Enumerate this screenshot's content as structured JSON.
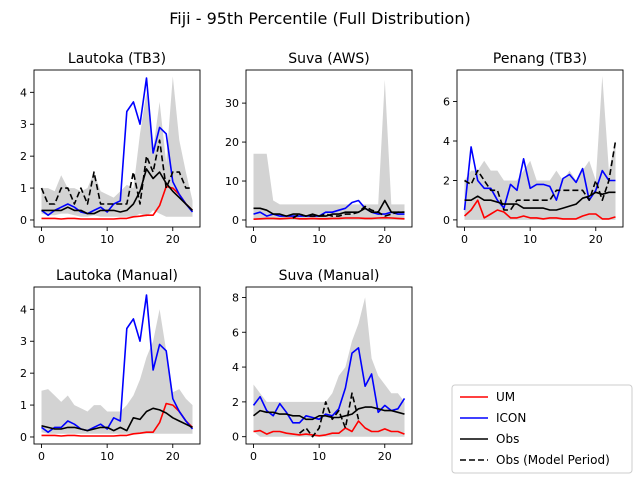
{
  "figure": {
    "title": "Fiji - 95th Percentile (Full Distribution)"
  },
  "colors": {
    "um": "#ff0000",
    "icon": "#0000ff",
    "obs": "#000000",
    "obs_model": "#000000",
    "band": "#d3d3d3"
  },
  "legend": {
    "placement": "lower-right",
    "entries": [
      {
        "label": "UM",
        "color": "#ff0000",
        "style": "solid"
      },
      {
        "label": "ICON",
        "color": "#0000ff",
        "style": "solid"
      },
      {
        "label": "Obs",
        "color": "#000000",
        "style": "solid"
      },
      {
        "label": "Obs (Model Period)",
        "color": "#000000",
        "style": "dashed"
      }
    ]
  },
  "chart_data": [
    {
      "type": "line",
      "title": "Lautoka (TB3)",
      "xlim": [
        -1.15,
        24.15
      ],
      "ylim": [
        -0.22,
        4.7
      ],
      "xticks": [
        0,
        10,
        20
      ],
      "yticks": [
        0,
        1,
        2,
        3,
        4
      ],
      "x": [
        0,
        1,
        2,
        3,
        4,
        5,
        6,
        7,
        8,
        9,
        10,
        11,
        12,
        13,
        14,
        15,
        16,
        17,
        18,
        19,
        20,
        21,
        22,
        23
      ],
      "band": {
        "upper": [
          1.0,
          1.0,
          0.9,
          1.4,
          1.0,
          1.0,
          0.9,
          1.0,
          1.5,
          0.9,
          0.8,
          0.7,
          0.9,
          1.1,
          1.0,
          2.7,
          4.0,
          2.2,
          3.7,
          1.8,
          4.5,
          2.5,
          1.5,
          0.6
        ],
        "lower": [
          0.2,
          0.15,
          0.15,
          0.2,
          0.2,
          0.15,
          0.1,
          0.1,
          0.15,
          0.1,
          0.1,
          0.1,
          0.1,
          0.1,
          0.1,
          0.2,
          0.1,
          0.3,
          0.2,
          0.1,
          0.1,
          0.1,
          0.1,
          0.1
        ]
      },
      "series": [
        {
          "name": "UM",
          "values": [
            0.05,
            0.05,
            0.05,
            0.03,
            0.05,
            0.05,
            0.03,
            0.03,
            0.03,
            0.03,
            0.03,
            0.03,
            0.05,
            0.05,
            0.1,
            0.12,
            0.15,
            0.15,
            0.45,
            1.05,
            1.0,
            0.8,
            0.5,
            0.3
          ]
        },
        {
          "name": "ICON",
          "values": [
            0.3,
            0.15,
            0.3,
            0.4,
            0.5,
            0.4,
            0.25,
            0.2,
            0.3,
            0.4,
            0.25,
            0.5,
            0.6,
            3.4,
            3.7,
            3.0,
            4.45,
            2.1,
            2.9,
            2.7,
            1.2,
            0.8,
            0.5,
            0.25
          ]
        },
        {
          "name": "Obs",
          "values": [
            0.3,
            0.3,
            0.3,
            0.3,
            0.4,
            0.3,
            0.3,
            0.2,
            0.2,
            0.3,
            0.3,
            0.3,
            0.25,
            0.3,
            0.5,
            0.9,
            1.6,
            1.3,
            1.5,
            1.15,
            0.9,
            0.7,
            0.5,
            0.3
          ]
        },
        {
          "name": "Obs (Model Period)",
          "values": [
            1.0,
            0.5,
            0.5,
            1.0,
            1.0,
            0.5,
            1.0,
            0.5,
            1.5,
            0.5,
            0.5,
            0.5,
            0.5,
            0.5,
            1.5,
            0.5,
            2.0,
            1.5,
            2.5,
            1.0,
            1.5,
            1.5,
            1.0,
            1.0
          ]
        }
      ]
    },
    {
      "type": "line",
      "title": "Suva (AWS)",
      "xlim": [
        -1.15,
        24.15
      ],
      "ylim": [
        -1.8,
        38.5
      ],
      "xticks": [
        0,
        10,
        20
      ],
      "yticks": [
        0,
        10,
        20,
        30
      ],
      "x": [
        0,
        1,
        2,
        3,
        4,
        5,
        6,
        7,
        8,
        9,
        10,
        11,
        12,
        13,
        14,
        15,
        16,
        17,
        18,
        19,
        20,
        21,
        22,
        23
      ],
      "band": {
        "upper": [
          17.0,
          17.0,
          17.0,
          5.0,
          4.0,
          4.0,
          4.0,
          4.0,
          4.0,
          4.0,
          4.0,
          4.0,
          4.0,
          4.0,
          4.0,
          4.0,
          4.0,
          4.0,
          4.0,
          4.0,
          36.0,
          4.0,
          4.0,
          4.0
        ],
        "lower": [
          0.0,
          0.0,
          0.0,
          0.0,
          0.0,
          0.0,
          0.0,
          0.0,
          0.0,
          0.0,
          0.0,
          0.0,
          0.0,
          0.0,
          0.0,
          0.0,
          0.0,
          0.0,
          0.0,
          0.0,
          0.0,
          0.0,
          0.0,
          0.0
        ]
      },
      "series": [
        {
          "name": "UM",
          "values": [
            0.2,
            0.3,
            0.4,
            0.4,
            0.3,
            0.4,
            0.5,
            0.3,
            0.3,
            0.4,
            0.3,
            0.3,
            0.4,
            0.4,
            0.5,
            0.5,
            0.5,
            0.4,
            0.4,
            0.5,
            0.6,
            0.5,
            0.4,
            0.3
          ]
        },
        {
          "name": "ICON",
          "values": [
            1.5,
            2.0,
            1.0,
            1.5,
            1.0,
            1.0,
            1.0,
            1.0,
            1.0,
            1.0,
            1.0,
            2.0,
            2.0,
            2.5,
            3.0,
            4.5,
            5.0,
            3.0,
            2.0,
            1.5,
            1.5,
            2.0,
            1.5,
            1.5
          ]
        },
        {
          "name": "Obs",
          "values": [
            3.0,
            3.0,
            2.5,
            1.5,
            1.5,
            1.0,
            1.5,
            1.5,
            1.0,
            1.5,
            1.0,
            1.0,
            1.5,
            1.5,
            2.0,
            2.0,
            2.0,
            3.0,
            2.0,
            2.0,
            5.0,
            2.0,
            2.0,
            2.0
          ]
        },
        {
          "name": "Obs (Model Period)",
          "values": [
            null,
            null,
            null,
            null,
            null,
            null,
            0.5,
            1.5,
            1.0,
            1.0,
            1.0,
            1.5,
            1.0,
            1.0,
            1.5,
            1.5,
            2.0,
            3.5,
            2.5,
            2.0,
            1.0,
            1.5,
            2.0,
            2.0
          ]
        }
      ]
    },
    {
      "type": "line",
      "title": "Penang (TB3)",
      "xlim": [
        -1.15,
        24.15
      ],
      "ylim": [
        -0.36,
        7.6
      ],
      "xticks": [
        0,
        10,
        20
      ],
      "yticks": [
        0,
        2,
        4,
        6
      ],
      "x": [
        0,
        1,
        2,
        3,
        4,
        5,
        6,
        7,
        8,
        9,
        10,
        11,
        12,
        13,
        14,
        15,
        16,
        17,
        18,
        19,
        20,
        21,
        22,
        23
      ],
      "band": {
        "upper": [
          2.0,
          2.5,
          2.5,
          3.0,
          2.5,
          2.5,
          2.0,
          2.0,
          2.0,
          2.5,
          3.0,
          2.0,
          2.0,
          2.0,
          2.5,
          2.0,
          2.5,
          2.0,
          2.5,
          3.0,
          2.0,
          7.3,
          2.5,
          4.0
        ],
        "lower": [
          0.0,
          0.0,
          0.0,
          0.0,
          0.0,
          0.0,
          0.0,
          0.0,
          0.0,
          0.0,
          0.0,
          0.0,
          0.0,
          0.0,
          0.0,
          0.0,
          0.0,
          0.0,
          0.0,
          0.0,
          0.0,
          0.0,
          0.0,
          0.0
        ]
      },
      "series": [
        {
          "name": "UM",
          "values": [
            0.2,
            0.5,
            1.0,
            0.1,
            0.3,
            0.5,
            0.4,
            0.1,
            0.1,
            0.2,
            0.1,
            0.1,
            0.05,
            0.1,
            0.1,
            0.05,
            0.05,
            0.05,
            0.2,
            0.3,
            0.3,
            0.05,
            0.05,
            0.15
          ]
        },
        {
          "name": "ICON",
          "values": [
            0.5,
            3.7,
            2.0,
            1.6,
            1.6,
            1.0,
            0.6,
            1.8,
            1.5,
            3.1,
            1.6,
            1.8,
            1.8,
            1.7,
            1.0,
            2.1,
            2.3,
            1.9,
            2.6,
            1.0,
            1.5,
            2.5,
            2.0,
            2.0
          ]
        },
        {
          "name": "Obs",
          "values": [
            1.0,
            1.0,
            1.2,
            1.0,
            1.0,
            0.9,
            0.8,
            0.8,
            0.8,
            0.6,
            0.6,
            0.6,
            0.6,
            0.5,
            0.5,
            0.6,
            0.7,
            0.8,
            1.1,
            1.2,
            1.4,
            1.3,
            1.4,
            1.4
          ]
        },
        {
          "name": "Obs (Model Period)",
          "values": [
            2.0,
            1.8,
            2.5,
            2.0,
            1.5,
            1.5,
            0.5,
            0.5,
            1.0,
            1.0,
            1.0,
            1.0,
            1.0,
            1.0,
            1.5,
            1.5,
            1.5,
            1.5,
            1.5,
            1.0,
            2.0,
            1.0,
            2.0,
            4.0
          ]
        }
      ]
    },
    {
      "type": "line",
      "title": "Lautoka (Manual)",
      "xlim": [
        -1.15,
        24.15
      ],
      "ylim": [
        -0.22,
        4.7
      ],
      "xticks": [
        0,
        10,
        20
      ],
      "yticks": [
        0,
        1,
        2,
        3,
        4
      ],
      "x": [
        0,
        1,
        2,
        3,
        4,
        5,
        6,
        7,
        8,
        9,
        10,
        11,
        12,
        13,
        14,
        15,
        16,
        17,
        18,
        19,
        20,
        21,
        22,
        23
      ],
      "band": {
        "upper": [
          1.45,
          1.5,
          1.3,
          1.1,
          1.3,
          1.0,
          0.9,
          0.8,
          1.0,
          1.0,
          0.8,
          0.8,
          0.8,
          1.0,
          1.3,
          1.8,
          2.5,
          3.0,
          4.0,
          2.7,
          1.4,
          1.5,
          1.2,
          1.0
        ],
        "lower": [
          0.15,
          0.1,
          0.1,
          0.1,
          0.1,
          0.1,
          0.1,
          0.1,
          0.1,
          0.1,
          0.1,
          0.1,
          0.1,
          0.1,
          0.1,
          0.1,
          0.1,
          0.1,
          0.1,
          0.1,
          0.1,
          0.1,
          0.1,
          0.1
        ]
      },
      "series": [
        {
          "name": "UM",
          "values": [
            0.05,
            0.05,
            0.05,
            0.03,
            0.05,
            0.05,
            0.03,
            0.03,
            0.03,
            0.03,
            0.03,
            0.03,
            0.05,
            0.05,
            0.1,
            0.12,
            0.15,
            0.15,
            0.45,
            1.05,
            1.0,
            0.8,
            0.5,
            0.3
          ]
        },
        {
          "name": "ICON",
          "values": [
            0.3,
            0.15,
            0.3,
            0.3,
            0.5,
            0.4,
            0.25,
            0.2,
            0.3,
            0.4,
            0.25,
            0.6,
            0.5,
            3.4,
            3.7,
            3.0,
            4.45,
            2.1,
            2.9,
            2.7,
            1.2,
            0.8,
            0.5,
            0.25
          ]
        },
        {
          "name": "Obs",
          "values": [
            0.35,
            0.3,
            0.25,
            0.25,
            0.3,
            0.3,
            0.25,
            0.2,
            0.25,
            0.3,
            0.3,
            0.2,
            0.3,
            0.2,
            0.6,
            0.55,
            0.8,
            0.9,
            0.85,
            0.75,
            0.6,
            0.5,
            0.4,
            0.3
          ]
        }
      ]
    },
    {
      "type": "line",
      "title": "Suva (Manual)",
      "xlim": [
        -1.15,
        24.15
      ],
      "ylim": [
        -0.42,
        8.6
      ],
      "xticks": [
        0,
        10,
        20
      ],
      "yticks": [
        0,
        2,
        4,
        6,
        8
      ],
      "x": [
        0,
        1,
        2,
        3,
        4,
        5,
        6,
        7,
        8,
        9,
        10,
        11,
        12,
        13,
        14,
        15,
        16,
        17,
        18,
        19,
        20,
        21,
        22,
        23
      ],
      "band": {
        "upper": [
          3.0,
          2.5,
          2.0,
          2.0,
          2.0,
          2.0,
          2.0,
          2.0,
          2.0,
          2.0,
          2.0,
          2.0,
          2.5,
          3.5,
          4.0,
          5.5,
          6.5,
          8.0,
          4.5,
          3.5,
          3.0,
          2.5,
          2.5,
          2.0
        ],
        "lower": [
          0.3,
          0.0,
          0.0,
          0.0,
          0.0,
          0.0,
          0.0,
          0.0,
          0.0,
          0.0,
          0.0,
          0.0,
          0.0,
          0.0,
          0.0,
          0.0,
          0.0,
          0.0,
          0.0,
          0.0,
          0.0,
          0.0,
          0.0,
          0.0
        ]
      },
      "series": [
        {
          "name": "UM",
          "values": [
            0.3,
            0.35,
            0.15,
            0.3,
            0.3,
            0.2,
            0.15,
            0.1,
            0.15,
            0.1,
            0.05,
            0.1,
            0.2,
            0.2,
            0.5,
            0.3,
            0.9,
            0.5,
            0.3,
            0.3,
            0.45,
            0.3,
            0.3,
            0.15
          ]
        },
        {
          "name": "ICON",
          "values": [
            1.8,
            2.3,
            1.5,
            1.2,
            1.9,
            1.4,
            0.8,
            0.8,
            1.2,
            1.1,
            1.0,
            1.3,
            1.2,
            1.6,
            2.8,
            4.8,
            5.1,
            2.9,
            3.6,
            1.4,
            1.8,
            1.5,
            1.6,
            2.2
          ]
        },
        {
          "name": "Obs",
          "values": [
            1.2,
            1.5,
            1.4,
            1.4,
            1.3,
            1.3,
            1.2,
            1.2,
            1.0,
            1.0,
            1.2,
            1.2,
            1.1,
            1.1,
            1.2,
            1.3,
            1.6,
            1.7,
            1.7,
            1.6,
            1.5,
            1.5,
            1.4,
            1.3
          ]
        },
        {
          "name": "Obs (Model Period)",
          "values": [
            null,
            null,
            null,
            null,
            null,
            null,
            null,
            0.2,
            0.5,
            0.0,
            0.5,
            2.0,
            1.0,
            1.5,
            0.5,
            2.5,
            1.0,
            null,
            null,
            null,
            null,
            null,
            null,
            null
          ]
        }
      ]
    }
  ]
}
